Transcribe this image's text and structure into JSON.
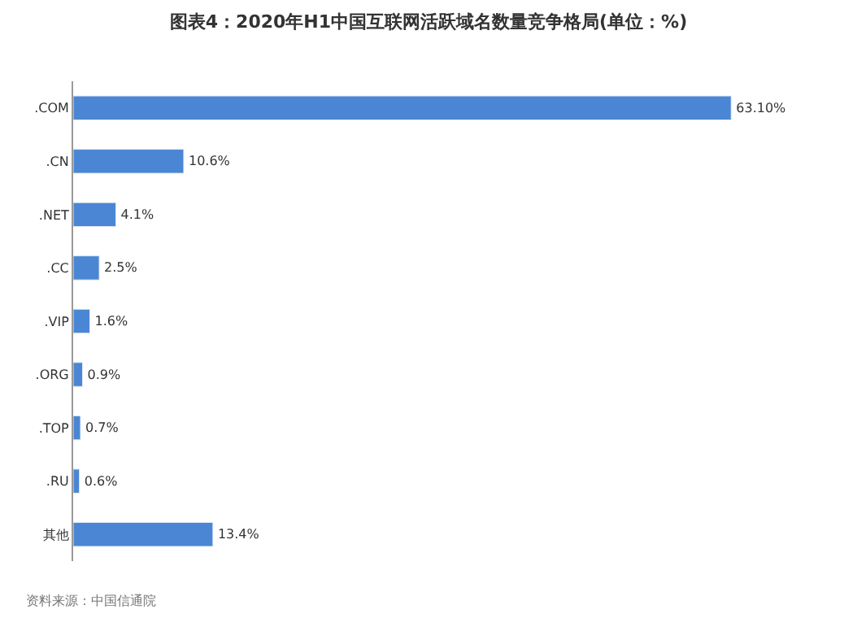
{
  "chart_data": {
    "type": "bar",
    "orientation": "horizontal",
    "title": "图表4：2020年H1中国互联网活跃域名数量竞争格局(单位：%)",
    "categories": [
      ".COM",
      ".CN",
      ".NET",
      ".CC",
      ".VIP",
      ".ORG",
      ".TOP",
      ".RU",
      "其他"
    ],
    "values": [
      63.1,
      10.6,
      4.1,
      2.5,
      1.6,
      0.9,
      0.7,
      0.6,
      13.4
    ],
    "value_labels": [
      "63.10%",
      "10.6%",
      "4.1%",
      "2.5%",
      "1.6%",
      "0.9%",
      "0.7%",
      "0.6%",
      "13.4%"
    ],
    "color": "#4a86d4",
    "annotations": [
      "资料来源：中国信通院"
    ]
  }
}
